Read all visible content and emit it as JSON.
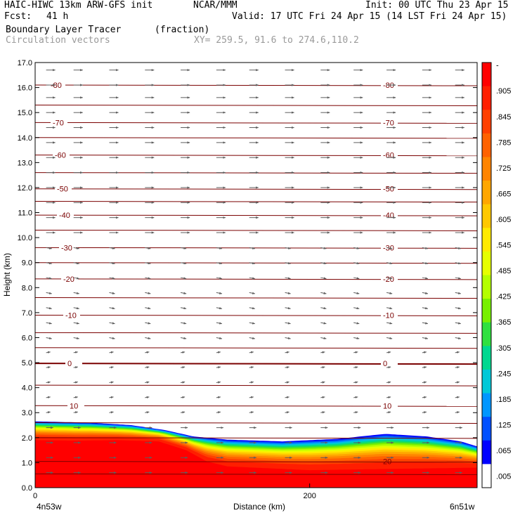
{
  "header": {
    "model_title": "HAIC-HIWC 13km ARW-GFS init",
    "org": "NCAR/MMM",
    "init": "Init: 00 UTC Thu 23 Apr 15",
    "fcst_label": "Fcst:",
    "fcst_value": "41 h",
    "valid": "Valid: 17 UTC Fri 24 Apr 15 (14 LST Fri 24 Apr 15)",
    "field": "Boundary Layer Tracer",
    "units": "(fraction)",
    "vectors": "Circulation vectors",
    "xy": "XY= 259.5, 91.6 to 274.6,110.2"
  },
  "chart_data": {
    "type": "heatmap",
    "title": "Boundary Layer Tracer",
    "xlabel": "Distance (km)",
    "ylabel": "Height (km)",
    "xlim": [
      0,
      322
    ],
    "ylim": [
      0,
      17
    ],
    "x_ticks": [
      {
        "v": 0,
        "label": "0"
      },
      {
        "v": 200,
        "label": "200"
      }
    ],
    "x_end_labels": {
      "left": "4n53w",
      "right": "6n51w"
    },
    "y_ticks": [
      "0.0",
      "1.0",
      "2.0",
      "3.0",
      "4.0",
      "5.0",
      "6.0",
      "7.0",
      "8.0",
      "9.0",
      "10.0",
      "11.0",
      "12.0",
      "13.0",
      "14.0",
      "15.0",
      "16.0",
      "17.0"
    ],
    "colorbar": {
      "labels": [
        "-",
        ".905",
        ".845",
        ".785",
        ".725",
        ".665",
        ".605",
        ".545",
        ".485",
        ".425",
        ".365",
        ".305",
        ".245",
        ".185",
        ".125",
        ".065",
        ".005"
      ],
      "colors": [
        "#ff0000",
        "#ff1e00",
        "#ff4000",
        "#ff6200",
        "#ff8400",
        "#ffa600",
        "#ffc800",
        "#ffea00",
        "#e6ff00",
        "#b4ff00",
        "#78f000",
        "#30e040",
        "#00d890",
        "#00c8d8",
        "#0096ff",
        "#0050ff",
        "#0000ff",
        "#ffffff"
      ]
    },
    "temperature_contours": [
      {
        "level": "-80",
        "z": 16.1
      },
      {
        "level": "-70",
        "z": 14.6
      },
      {
        "level": "-60",
        "z": 13.3
      },
      {
        "level": "-50",
        "z": 11.95
      },
      {
        "level": "-40",
        "z": 10.9
      },
      {
        "level": "-30",
        "z": 9.6
      },
      {
        "level": "-20",
        "z": 8.35
      },
      {
        "level": "-10",
        "z": 6.9
      },
      {
        "level": "0",
        "z": 4.97
      },
      {
        "level": "10",
        "z": 3.28
      },
      {
        "level": "20",
        "z": 1.05
      }
    ],
    "minor_contour_heights": [
      15.3,
      14.0,
      12.6,
      11.45,
      10.3,
      9.0,
      7.6,
      6.2,
      5.6,
      4.1,
      2.6,
      2.0,
      0.55
    ],
    "tracer_top_km": [
      {
        "x": 0,
        "z": 2.65
      },
      {
        "x": 40,
        "z": 2.6
      },
      {
        "x": 70,
        "z": 2.5
      },
      {
        "x": 95,
        "z": 2.3
      },
      {
        "x": 115,
        "z": 2.05
      },
      {
        "x": 140,
        "z": 1.92
      },
      {
        "x": 180,
        "z": 1.85
      },
      {
        "x": 220,
        "z": 1.95
      },
      {
        "x": 255,
        "z": 2.15
      },
      {
        "x": 285,
        "z": 2.05
      },
      {
        "x": 310,
        "z": 1.85
      },
      {
        "x": 322,
        "z": 1.65
      }
    ],
    "tracer_full_top_km": [
      {
        "x": 0,
        "z": 1.9
      },
      {
        "x": 30,
        "z": 1.88
      },
      {
        "x": 60,
        "z": 1.9
      },
      {
        "x": 90,
        "z": 1.85
      },
      {
        "x": 110,
        "z": 1.5
      },
      {
        "x": 125,
        "z": 1.05
      },
      {
        "x": 140,
        "z": 0.85
      },
      {
        "x": 200,
        "z": 0.7
      },
      {
        "x": 260,
        "z": 0.75
      },
      {
        "x": 322,
        "z": 0.8
      }
    ],
    "vector_rows_km": [
      16.7,
      16.1,
      15.6,
      15.0,
      14.4,
      13.8,
      13.2,
      12.6,
      12.0,
      11.4,
      10.8,
      10.2,
      9.6,
      9.0,
      8.4,
      7.8,
      7.2,
      6.6,
      6.0,
      5.4,
      4.8,
      4.2,
      3.6,
      3.0,
      2.4,
      1.8,
      1.2,
      0.6
    ],
    "vector_columns_km": [
      8,
      28,
      54,
      80,
      106,
      132,
      156,
      182,
      208,
      232,
      256,
      282,
      306
    ]
  }
}
